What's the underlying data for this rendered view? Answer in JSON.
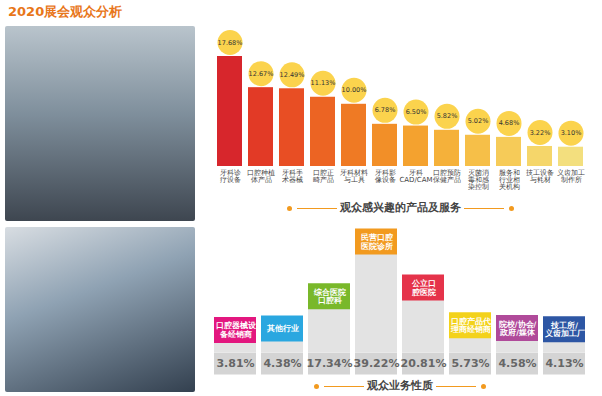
{
  "title": "2020展会观众分析",
  "chart_data": [
    {
      "type": "bar",
      "title": "观众感兴趣的产品及服务",
      "categories": [
        "牙科诊疗设备",
        "口腔种植体产品",
        "牙科手术器械",
        "口腔正畸产品",
        "牙科材料与工具",
        "牙科影像设备",
        "牙科CAD/CAM",
        "口腔预防保健产品",
        "灭菌消毒和感染控制",
        "服务和行业相关机构",
        "技工设备与耗材",
        "义齿加工制作所"
      ],
      "values": [
        17.68,
        12.67,
        12.49,
        11.13,
        10.0,
        6.78,
        6.5,
        5.82,
        5.02,
        4.68,
        3.22,
        3.1
      ],
      "value_labels": [
        "17.68%",
        "12.67%",
        "12.49%",
        "11.13%",
        "10.00%",
        "6.78%",
        "6.50%",
        "5.82%",
        "5.02%",
        "4.68%",
        "3.22%",
        "3.10%"
      ],
      "colors": [
        "#d7262c",
        "#e23a26",
        "#e84e24",
        "#ec6423",
        "#ef7a24",
        "#f28f28",
        "#f4a22f",
        "#f5b13a",
        "#f6bf48",
        "#f6cb58",
        "#f5d66a",
        "#f3df7e"
      ],
      "data_labels": true,
      "tick_labels": "x"
    },
    {
      "type": "bar",
      "title": "观众业务性质",
      "categories": [
        "口腔器械设备经销商",
        "其他行业",
        "综合医院口腔科",
        "民营口腔医院诊所",
        "公立口腔医院",
        "口腔产品代理商经销商",
        "院校/协会/政府/媒体",
        "技工所/义齿加工厂"
      ],
      "values": [
        3.81,
        4.38,
        17.34,
        39.22,
        20.81,
        5.73,
        4.58,
        4.13
      ],
      "value_labels": [
        "3.81%",
        "4.38%",
        "17.34%",
        "39.22%",
        "20.81%",
        "5.73%",
        "4.58%",
        "4.13%"
      ],
      "colors": [
        "#e3177f",
        "#2aa7e0",
        "#79b82a",
        "#f29a1f",
        "#e5334a",
        "#f3d21b",
        "#b04a9a",
        "#2d56a4"
      ],
      "data_labels": true,
      "tick_labels": false
    }
  ]
}
